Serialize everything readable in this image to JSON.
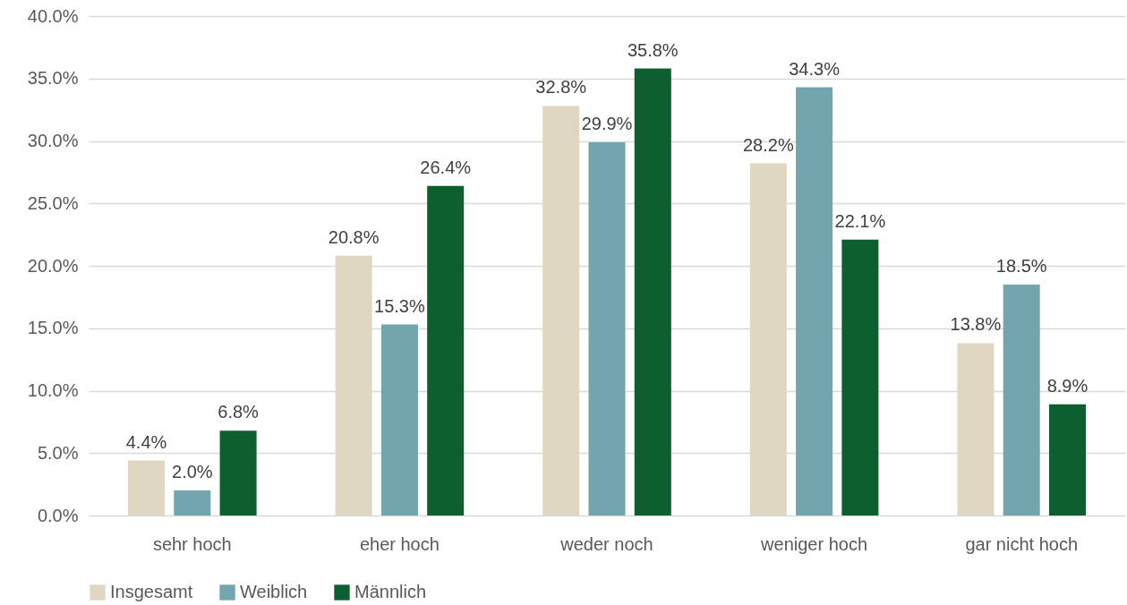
{
  "chart_data": {
    "type": "bar",
    "categories": [
      "sehr hoch",
      "eher hoch",
      "weder noch",
      "weniger hoch",
      "gar nicht hoch"
    ],
    "series": [
      {
        "name": "Insgesamt",
        "color": "#e0d7c3",
        "values": [
          4.4,
          20.8,
          32.8,
          28.2,
          13.8
        ],
        "value_labels": [
          "4.4%",
          "20.8%",
          "32.8%",
          "28.2%",
          "13.8%"
        ]
      },
      {
        "name": "Weiblich",
        "color": "#72a5ae",
        "values": [
          2.0,
          15.3,
          29.9,
          34.3,
          18.5
        ],
        "value_labels": [
          "2.0%",
          "15.3%",
          "29.9%",
          "34.3%",
          "18.5%"
        ]
      },
      {
        "name": "Männlich",
        "color": "#0d5f2f",
        "values": [
          6.8,
          26.4,
          35.8,
          22.1,
          8.9
        ],
        "value_labels": [
          "6.8%",
          "26.4%",
          "35.8%",
          "22.1%",
          "8.9%"
        ]
      }
    ],
    "ylim": [
      0,
      40
    ],
    "yticks": [
      {
        "value": 0,
        "label": "0.0%"
      },
      {
        "value": 5,
        "label": "5.0%"
      },
      {
        "value": 10,
        "label": "10.0%"
      },
      {
        "value": 15,
        "label": "15.0%"
      },
      {
        "value": 20,
        "label": "20.0%"
      },
      {
        "value": 25,
        "label": "25.0%"
      },
      {
        "value": 30,
        "label": "30.0%"
      },
      {
        "value": 35,
        "label": "35.0%"
      },
      {
        "value": 40,
        "label": "40.0%"
      }
    ],
    "grid": "y",
    "legend": "bottom"
  }
}
